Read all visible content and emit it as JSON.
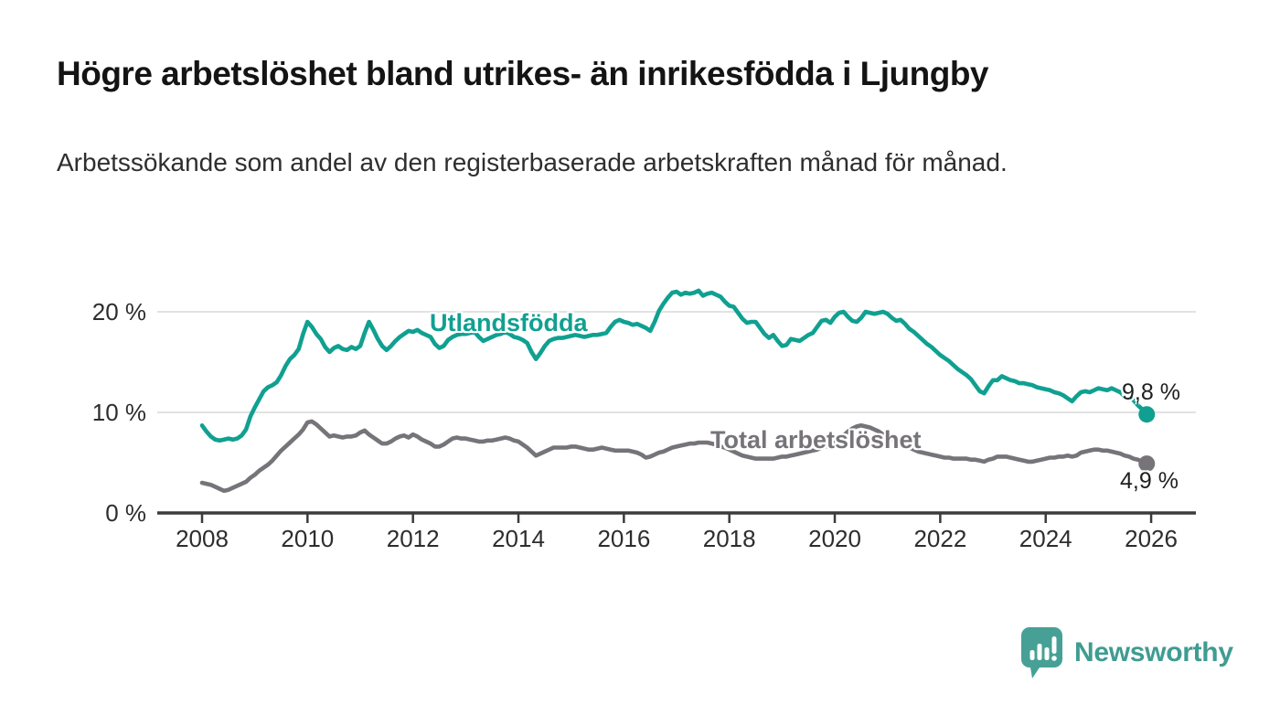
{
  "header": {
    "title": "Högre arbetslöshet bland utrikes- än inrikesfödda i Ljungby",
    "subtitle": "Arbetssökande som andel av den registerbaserade arbetskraften månad för månad."
  },
  "chart_data": {
    "type": "line",
    "title": "Högre arbetslöshet bland utrikes- än inrikesfödda i Ljungby",
    "xlabel": "",
    "ylabel": "",
    "x_start": 2008.0,
    "x_step": 0.0833333,
    "x_tick_years": [
      2008,
      2010,
      2012,
      2014,
      2016,
      2018,
      2020,
      2022,
      2024,
      2026
    ],
    "y_ticks": [
      {
        "value": 0,
        "label": "0 %"
      },
      {
        "value": 10,
        "label": "10 %"
      },
      {
        "value": 20,
        "label": "20 %"
      }
    ],
    "ylim": [
      0,
      22.5
    ],
    "xlim": [
      2007.15,
      2026.83
    ],
    "grid": "horizontal-gridlines-at-10-and-20",
    "legend": "inline-series-labels",
    "colors": {
      "foreign_born_line": "#10a091",
      "total_line": "#767479",
      "axis": "#3b3b3b",
      "gridline": "#e2e2e2",
      "tick_text": "#2d2d2d"
    },
    "series": [
      {
        "name": "Utlandsfödda",
        "color": "#10a091",
        "end_label": "9,8 %",
        "end_value": 9.8,
        "values": [
          8.7,
          8.1,
          7.6,
          7.3,
          7.2,
          7.3,
          7.4,
          7.3,
          7.4,
          7.7,
          8.3,
          9.6,
          10.5,
          11.3,
          12.1,
          12.5,
          12.7,
          13.0,
          13.7,
          14.6,
          15.3,
          15.7,
          16.3,
          17.8,
          19.0,
          18.5,
          17.8,
          17.3,
          16.5,
          16.0,
          16.4,
          16.6,
          16.3,
          16.2,
          16.5,
          16.3,
          16.6,
          17.9,
          19.0,
          18.2,
          17.3,
          16.6,
          16.2,
          16.6,
          17.1,
          17.5,
          17.8,
          18.1,
          18.0,
          18.2,
          17.9,
          17.7,
          17.5,
          16.8,
          16.4,
          16.6,
          17.2,
          17.5,
          17.7,
          17.8,
          17.8,
          17.9,
          18.0,
          17.5,
          17.1,
          17.3,
          17.5,
          17.7,
          17.8,
          18.0,
          17.8,
          17.5,
          17.4,
          17.2,
          16.9,
          16.0,
          15.3,
          15.9,
          16.6,
          17.1,
          17.3,
          17.4,
          17.4,
          17.5,
          17.6,
          17.7,
          17.6,
          17.5,
          17.6,
          17.7,
          17.7,
          17.8,
          17.9,
          18.5,
          19.0,
          19.2,
          19.0,
          18.9,
          18.7,
          18.8,
          18.6,
          18.4,
          18.1,
          19.0,
          20.1,
          20.8,
          21.4,
          21.9,
          22.0,
          21.7,
          21.9,
          21.8,
          21.9,
          22.1,
          21.6,
          21.8,
          21.9,
          21.7,
          21.5,
          21.0,
          20.6,
          20.5,
          19.9,
          19.3,
          18.9,
          19.0,
          19.0,
          18.4,
          17.8,
          17.4,
          17.7,
          17.1,
          16.6,
          16.7,
          17.3,
          17.2,
          17.1,
          17.4,
          17.7,
          17.9,
          18.5,
          19.1,
          19.2,
          18.9,
          19.5,
          19.9,
          20.0,
          19.5,
          19.1,
          19.0,
          19.4,
          20.0,
          19.9,
          19.8,
          19.9,
          20.0,
          19.8,
          19.4,
          19.1,
          19.2,
          18.8,
          18.3,
          18.0,
          17.6,
          17.2,
          16.8,
          16.5,
          16.1,
          15.7,
          15.4,
          15.1,
          14.7,
          14.3,
          14.0,
          13.7,
          13.3,
          12.7,
          12.1,
          11.9,
          12.6,
          13.2,
          13.2,
          13.6,
          13.4,
          13.2,
          13.1,
          12.9,
          12.9,
          12.8,
          12.7,
          12.5,
          12.4,
          12.3,
          12.2,
          12.0,
          11.9,
          11.7,
          11.4,
          11.1,
          11.6,
          12.0,
          12.1,
          12.0,
          12.2,
          12.4,
          12.3,
          12.2,
          12.4,
          12.2,
          12.0,
          11.6,
          11.6,
          11.2,
          10.7,
          10.3,
          9.8
        ]
      },
      {
        "name": "Total arbetslöshet",
        "color": "#767479",
        "end_label": "4,9 %",
        "end_value": 4.9,
        "values": [
          3.0,
          2.9,
          2.8,
          2.6,
          2.4,
          2.2,
          2.3,
          2.5,
          2.7,
          2.9,
          3.1,
          3.5,
          3.8,
          4.2,
          4.5,
          4.8,
          5.2,
          5.7,
          6.2,
          6.6,
          7.0,
          7.4,
          7.8,
          8.3,
          9.0,
          9.1,
          8.8,
          8.4,
          8.0,
          7.6,
          7.7,
          7.6,
          7.5,
          7.6,
          7.6,
          7.7,
          8.0,
          8.2,
          7.8,
          7.5,
          7.2,
          6.9,
          6.9,
          7.1,
          7.4,
          7.6,
          7.7,
          7.5,
          7.8,
          7.6,
          7.3,
          7.1,
          6.9,
          6.6,
          6.6,
          6.8,
          7.1,
          7.4,
          7.5,
          7.4,
          7.4,
          7.3,
          7.2,
          7.1,
          7.1,
          7.2,
          7.2,
          7.3,
          7.4,
          7.5,
          7.4,
          7.2,
          7.1,
          6.8,
          6.5,
          6.1,
          5.7,
          5.9,
          6.1,
          6.3,
          6.5,
          6.5,
          6.5,
          6.5,
          6.6,
          6.6,
          6.5,
          6.4,
          6.3,
          6.3,
          6.4,
          6.5,
          6.4,
          6.3,
          6.2,
          6.2,
          6.2,
          6.2,
          6.1,
          6.0,
          5.8,
          5.5,
          5.6,
          5.8,
          6.0,
          6.1,
          6.3,
          6.5,
          6.6,
          6.7,
          6.8,
          6.9,
          6.9,
          7.0,
          7.0,
          7.0,
          6.9,
          6.8,
          6.6,
          6.5,
          6.3,
          6.1,
          5.9,
          5.7,
          5.6,
          5.5,
          5.4,
          5.4,
          5.4,
          5.4,
          5.4,
          5.5,
          5.6,
          5.6,
          5.7,
          5.8,
          5.9,
          6.0,
          6.1,
          6.2,
          6.3,
          6.5,
          6.6,
          6.8,
          7.0,
          7.3,
          7.7,
          8.1,
          8.4,
          8.6,
          8.7,
          8.6,
          8.5,
          8.3,
          8.1,
          7.8,
          7.6,
          7.4,
          7.1,
          6.9,
          6.7,
          6.5,
          6.3,
          6.1,
          6.0,
          5.9,
          5.8,
          5.7,
          5.6,
          5.5,
          5.5,
          5.4,
          5.4,
          5.4,
          5.4,
          5.3,
          5.3,
          5.2,
          5.1,
          5.3,
          5.4,
          5.6,
          5.6,
          5.6,
          5.5,
          5.4,
          5.3,
          5.2,
          5.1,
          5.1,
          5.2,
          5.3,
          5.4,
          5.5,
          5.5,
          5.6,
          5.6,
          5.7,
          5.6,
          5.7,
          6.0,
          6.1,
          6.2,
          6.3,
          6.3,
          6.2,
          6.2,
          6.1,
          6.0,
          5.9,
          5.7,
          5.6,
          5.4,
          5.3,
          5.1,
          4.9
        ]
      }
    ]
  },
  "branding": {
    "logo_text": "Newsworthy",
    "logo_icon": "bar-chart-speech-bubble-icon",
    "logo_color": "#47a096",
    "logo_text_color": "#3f9c91"
  }
}
